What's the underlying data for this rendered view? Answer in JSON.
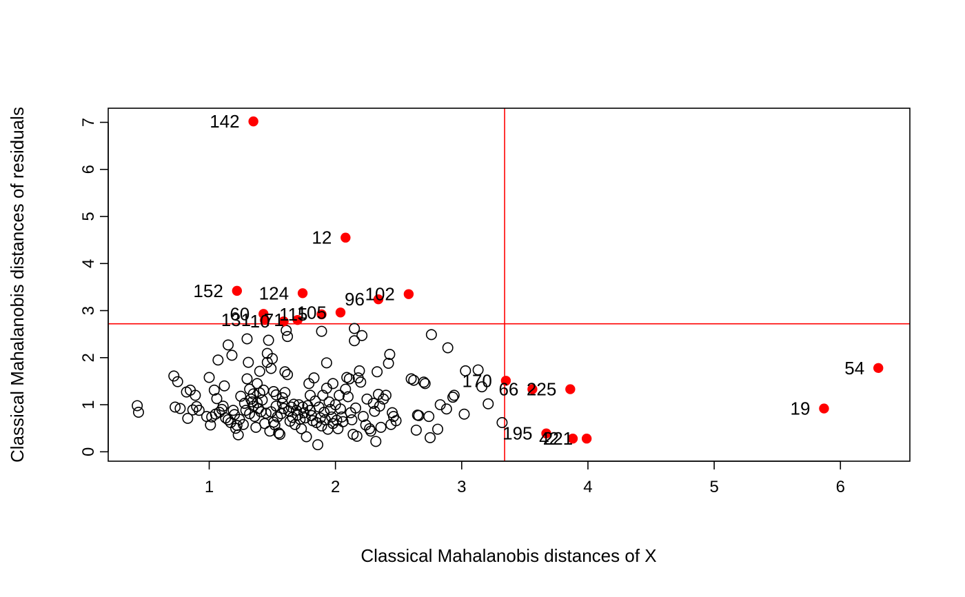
{
  "chart_data": {
    "type": "scatter",
    "title": "",
    "xlabel": "Classical Mahalanobis distances of X",
    "ylabel": "Classical Mahalanobis distances of residuals",
    "xlim": [
      0.2,
      6.55
    ],
    "ylim": [
      -0.2,
      7.3
    ],
    "xticks": [
      1,
      2,
      3,
      4,
      5,
      6
    ],
    "yticks": [
      0,
      1,
      2,
      3,
      4,
      5,
      6,
      7
    ],
    "cutoff": {
      "x": 3.34,
      "y": 2.72,
      "color": "#ff0000"
    },
    "colors": {
      "regular": "#000000",
      "outlier": "#ff0000"
    },
    "outliers": [
      {
        "label": "142",
        "x": 1.35,
        "y": 7.02
      },
      {
        "label": "12",
        "x": 2.08,
        "y": 4.55
      },
      {
        "label": "152",
        "x": 1.22,
        "y": 3.42
      },
      {
        "label": "124",
        "x": 1.74,
        "y": 3.37
      },
      {
        "label": "102",
        "x": 2.58,
        "y": 3.35
      },
      {
        "label": "96",
        "x": 2.34,
        "y": 3.24
      },
      {
        "label": "60",
        "x": 1.43,
        "y": 2.93
      },
      {
        "label": "115",
        "x": 1.89,
        "y": 2.92
      },
      {
        "label": "105",
        "x": 2.04,
        "y": 2.96
      },
      {
        "label": "131",
        "x": 1.44,
        "y": 2.8
      },
      {
        "label": "71",
        "x": 1.7,
        "y": 2.8
      },
      {
        "label": "10",
        "x": 1.59,
        "y": 2.77
      },
      {
        "label": "54",
        "x": 6.3,
        "y": 1.78
      },
      {
        "label": "19",
        "x": 5.87,
        "y": 0.92
      },
      {
        "label": "170",
        "x": 3.35,
        "y": 1.51
      },
      {
        "label": "66",
        "x": 3.56,
        "y": 1.33
      },
      {
        "label": "225",
        "x": 3.86,
        "y": 1.33
      },
      {
        "label": "195",
        "x": 3.67,
        "y": 0.39
      },
      {
        "label": "42",
        "x": 3.88,
        "y": 0.28
      },
      {
        "label": "221",
        "x": 3.99,
        "y": 0.28
      }
    ],
    "regular": [
      [
        0.43,
        0.98
      ],
      [
        0.44,
        0.84
      ],
      [
        0.72,
        1.61
      ],
      [
        0.73,
        0.95
      ],
      [
        0.75,
        1.49
      ],
      [
        0.77,
        0.92
      ],
      [
        0.82,
        1.27
      ],
      [
        0.83,
        0.71
      ],
      [
        0.85,
        1.31
      ],
      [
        0.87,
        0.89
      ],
      [
        0.89,
        1.2
      ],
      [
        0.9,
        0.96
      ],
      [
        0.92,
        0.88
      ],
      [
        0.98,
        0.75
      ],
      [
        1.0,
        1.58
      ],
      [
        1.01,
        0.57
      ],
      [
        1.02,
        0.74
      ],
      [
        1.04,
        1.31
      ],
      [
        1.05,
        0.8
      ],
      [
        1.06,
        1.13
      ],
      [
        1.07,
        1.95
      ],
      [
        1.08,
        0.84
      ],
      [
        1.1,
        0.9
      ],
      [
        1.11,
        0.97
      ],
      [
        1.12,
        1.4
      ],
      [
        1.13,
        0.72
      ],
      [
        1.15,
        2.27
      ],
      [
        1.15,
        0.68
      ],
      [
        1.17,
        0.62
      ],
      [
        1.18,
        2.05
      ],
      [
        1.19,
        0.88
      ],
      [
        1.2,
        0.79
      ],
      [
        1.21,
        0.5
      ],
      [
        1.22,
        0.56
      ],
      [
        1.23,
        0.36
      ],
      [
        1.24,
        0.69
      ],
      [
        1.25,
        1.18
      ],
      [
        1.27,
        0.58
      ],
      [
        1.28,
        1.03
      ],
      [
        1.29,
        0.88
      ],
      [
        1.3,
        2.4
      ],
      [
        1.3,
        1.55
      ],
      [
        1.31,
        1.9
      ],
      [
        1.32,
        0.81
      ],
      [
        1.32,
        1.33
      ],
      [
        1.33,
        1.12
      ],
      [
        1.34,
        1.06
      ],
      [
        1.35,
        1.23
      ],
      [
        1.35,
        0.97
      ],
      [
        1.36,
        0.75
      ],
      [
        1.37,
        0.52
      ],
      [
        1.38,
        1.45
      ],
      [
        1.38,
        1.04
      ],
      [
        1.39,
        0.92
      ],
      [
        1.4,
        1.71
      ],
      [
        1.4,
        1.25
      ],
      [
        1.41,
        0.85
      ],
      [
        1.42,
        1.1
      ],
      [
        1.43,
        1.31
      ],
      [
        1.44,
        0.6
      ],
      [
        1.45,
        0.82
      ],
      [
        1.46,
        2.09
      ],
      [
        1.46,
        1.9
      ],
      [
        1.47,
        2.37
      ],
      [
        1.48,
        0.44
      ],
      [
        1.49,
        1.77
      ],
      [
        1.49,
        0.85
      ],
      [
        1.5,
        1.98
      ],
      [
        1.51,
        1.28
      ],
      [
        1.51,
        0.63
      ],
      [
        1.52,
        0.57
      ],
      [
        1.53,
        1.21
      ],
      [
        1.53,
        0.97
      ],
      [
        1.54,
        0.74
      ],
      [
        1.55,
        0.4
      ],
      [
        1.56,
        0.37
      ],
      [
        1.57,
        0.81
      ],
      [
        1.58,
        1.15
      ],
      [
        1.58,
        1.03
      ],
      [
        1.59,
        0.92
      ],
      [
        1.6,
        1.7
      ],
      [
        1.6,
        1.26
      ],
      [
        1.61,
        2.58
      ],
      [
        1.62,
        2.45
      ],
      [
        1.62,
        1.64
      ],
      [
        1.63,
        0.87
      ],
      [
        1.64,
        0.65
      ],
      [
        1.65,
        0.95
      ],
      [
        1.66,
        0.73
      ],
      [
        1.67,
        1.01
      ],
      [
        1.68,
        0.58
      ],
      [
        1.69,
        0.88
      ],
      [
        1.7,
        0.78
      ],
      [
        1.71,
        1.0
      ],
      [
        1.72,
        0.69
      ],
      [
        1.73,
        0.49
      ],
      [
        1.74,
        0.95
      ],
      [
        1.75,
        0.83
      ],
      [
        1.76,
        0.72
      ],
      [
        1.77,
        0.32
      ],
      [
        1.78,
        0.98
      ],
      [
        1.79,
        1.45
      ],
      [
        1.8,
        1.2
      ],
      [
        1.8,
        0.88
      ],
      [
        1.81,
        0.77
      ],
      [
        1.82,
        0.66
      ],
      [
        1.83,
        1.57
      ],
      [
        1.84,
        1.08
      ],
      [
        1.85,
        0.62
      ],
      [
        1.86,
        0.15
      ],
      [
        1.87,
        0.95
      ],
      [
        1.88,
        0.72
      ],
      [
        1.89,
        0.55
      ],
      [
        1.89,
        2.56
      ],
      [
        1.9,
        1.2
      ],
      [
        1.91,
        0.84
      ],
      [
        1.92,
        0.68
      ],
      [
        1.93,
        1.89
      ],
      [
        1.93,
        1.35
      ],
      [
        1.94,
        0.48
      ],
      [
        1.95,
        1.06
      ],
      [
        1.96,
        0.9
      ],
      [
        1.97,
        0.74
      ],
      [
        1.98,
        1.45
      ],
      [
        1.98,
        0.6
      ],
      [
        2.0,
        1.0
      ],
      [
        2.01,
        0.67
      ],
      [
        2.02,
        0.49
      ],
      [
        2.03,
        1.2
      ],
      [
        2.04,
        0.91
      ],
      [
        2.05,
        0.74
      ],
      [
        2.06,
        0.64
      ],
      [
        2.08,
        1.33
      ],
      [
        2.09,
        1.58
      ],
      [
        2.1,
        1.17
      ],
      [
        2.11,
        1.55
      ],
      [
        2.12,
        0.83
      ],
      [
        2.13,
        0.68
      ],
      [
        2.14,
        0.37
      ],
      [
        2.15,
        2.62
      ],
      [
        2.15,
        2.36
      ],
      [
        2.16,
        0.93
      ],
      [
        2.17,
        0.33
      ],
      [
        2.18,
        1.57
      ],
      [
        2.19,
        1.72
      ],
      [
        2.2,
        1.48
      ],
      [
        2.21,
        2.47
      ],
      [
        2.22,
        0.75
      ],
      [
        2.24,
        0.57
      ],
      [
        2.25,
        1.12
      ],
      [
        2.27,
        0.49
      ],
      [
        2.28,
        0.44
      ],
      [
        2.3,
        1.03
      ],
      [
        2.31,
        0.86
      ],
      [
        2.32,
        0.22
      ],
      [
        2.33,
        1.7
      ],
      [
        2.34,
        1.22
      ],
      [
        2.35,
        0.97
      ],
      [
        2.36,
        0.52
      ],
      [
        2.38,
        1.12
      ],
      [
        2.4,
        1.2
      ],
      [
        2.42,
        1.88
      ],
      [
        2.43,
        2.07
      ],
      [
        2.44,
        0.58
      ],
      [
        2.45,
        0.83
      ],
      [
        2.46,
        0.75
      ],
      [
        2.48,
        0.66
      ],
      [
        2.6,
        1.55
      ],
      [
        2.62,
        1.52
      ],
      [
        2.64,
        0.46
      ],
      [
        2.65,
        0.78
      ],
      [
        2.66,
        0.77
      ],
      [
        2.7,
        1.48
      ],
      [
        2.71,
        1.45
      ],
      [
        2.74,
        0.75
      ],
      [
        2.75,
        0.3
      ],
      [
        2.76,
        2.49
      ],
      [
        2.81,
        0.48
      ],
      [
        2.83,
        1.0
      ],
      [
        2.88,
        0.91
      ],
      [
        2.89,
        2.21
      ],
      [
        2.93,
        1.16
      ],
      [
        2.94,
        1.2
      ],
      [
        3.02,
        0.8
      ],
      [
        3.03,
        1.72
      ],
      [
        3.13,
        1.74
      ],
      [
        3.16,
        1.38
      ],
      [
        3.21,
        1.02
      ],
      [
        3.32,
        0.62
      ]
    ]
  }
}
